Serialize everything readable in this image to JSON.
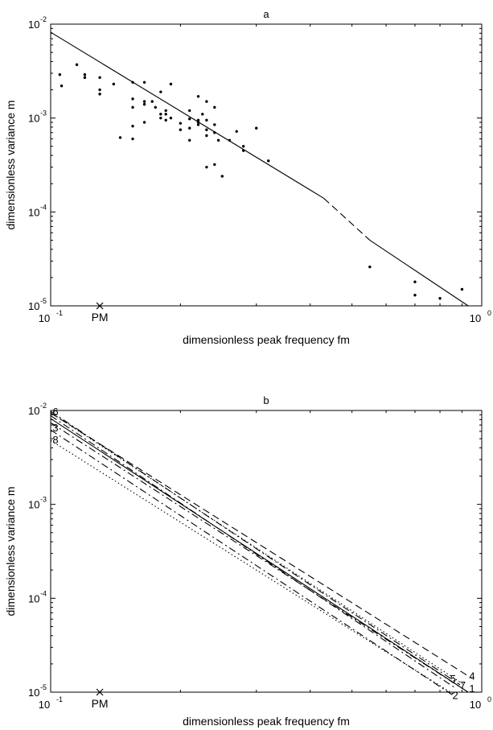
{
  "chart_data": [
    {
      "type": "scatter",
      "title": "a",
      "xlabel": "dimensionless peak frequency fm",
      "ylabel": "dimensionless variance m",
      "xscale": "log",
      "yscale": "log",
      "xlim": [
        0.1,
        1
      ],
      "ylim": [
        1e-05,
        0.01
      ],
      "grid": false,
      "xticks": [
        {
          "value": 0.1,
          "base": "10",
          "exp": "-1"
        },
        {
          "value": 1,
          "base": "10",
          "exp": "0"
        }
      ],
      "yticks": [
        {
          "value": 1e-05,
          "base": "10",
          "exp": "-5"
        },
        {
          "value": 0.0001,
          "base": "10",
          "exp": "-4"
        },
        {
          "value": 0.001,
          "base": "10",
          "exp": "-3"
        },
        {
          "value": 0.01,
          "base": "10",
          "exp": "-2"
        }
      ],
      "marker": {
        "label": "PM",
        "x": 0.13,
        "y": 1e-05
      },
      "fit_line": {
        "x": [
          0.1,
          0.43,
          0.55,
          0.93
        ],
        "y": [
          0.0082,
          0.00014,
          5e-05,
          1e-05
        ],
        "styles": [
          "solid",
          "dashed",
          "solid"
        ]
      },
      "points": [
        [
          0.105,
          0.0029
        ],
        [
          0.106,
          0.0022
        ],
        [
          0.115,
          0.0037
        ],
        [
          0.12,
          0.0029
        ],
        [
          0.12,
          0.0027
        ],
        [
          0.13,
          0.0027
        ],
        [
          0.13,
          0.002
        ],
        [
          0.13,
          0.0018
        ],
        [
          0.14,
          0.0023
        ],
        [
          0.145,
          0.00062
        ],
        [
          0.155,
          0.0024
        ],
        [
          0.155,
          0.0016
        ],
        [
          0.155,
          0.0013
        ],
        [
          0.155,
          0.00082
        ],
        [
          0.155,
          0.0006
        ],
        [
          0.165,
          0.0024
        ],
        [
          0.165,
          0.0015
        ],
        [
          0.165,
          0.0014
        ],
        [
          0.165,
          0.0009
        ],
        [
          0.172,
          0.0015
        ],
        [
          0.175,
          0.0013
        ],
        [
          0.18,
          0.0019
        ],
        [
          0.18,
          0.0011
        ],
        [
          0.18,
          0.001
        ],
        [
          0.185,
          0.0012
        ],
        [
          0.185,
          0.0011
        ],
        [
          0.185,
          0.00095
        ],
        [
          0.19,
          0.0023
        ],
        [
          0.19,
          0.001
        ],
        [
          0.2,
          0.00088
        ],
        [
          0.2,
          0.00075
        ],
        [
          0.21,
          0.0012
        ],
        [
          0.21,
          0.00098
        ],
        [
          0.21,
          0.00078
        ],
        [
          0.21,
          0.00058
        ],
        [
          0.22,
          0.0017
        ],
        [
          0.22,
          0.00095
        ],
        [
          0.22,
          0.0009
        ],
        [
          0.22,
          0.00085
        ],
        [
          0.225,
          0.0011
        ],
        [
          0.23,
          0.0015
        ],
        [
          0.23,
          0.00095
        ],
        [
          0.23,
          0.00075
        ],
        [
          0.23,
          0.00065
        ],
        [
          0.23,
          0.0003
        ],
        [
          0.24,
          0.0013
        ],
        [
          0.24,
          0.00085
        ],
        [
          0.24,
          0.0007
        ],
        [
          0.24,
          0.00032
        ],
        [
          0.245,
          0.00058
        ],
        [
          0.25,
          0.00024
        ],
        [
          0.26,
          0.00058
        ],
        [
          0.27,
          0.00072
        ],
        [
          0.28,
          0.0005
        ],
        [
          0.28,
          0.00045
        ],
        [
          0.3,
          0.00078
        ],
        [
          0.32,
          0.00035
        ],
        [
          0.55,
          2.6e-05
        ],
        [
          0.7,
          1.8e-05
        ],
        [
          0.7,
          1.3e-05
        ],
        [
          0.8,
          1.2e-05
        ],
        [
          0.9,
          1.5e-05
        ]
      ]
    },
    {
      "type": "line",
      "title": "b",
      "xlabel": "dimensionless peak frequency fm",
      "ylabel": "dimensionless variance m",
      "xscale": "log",
      "yscale": "log",
      "xlim": [
        0.1,
        1
      ],
      "ylim": [
        1e-05,
        0.01
      ],
      "grid": false,
      "xticks": [
        {
          "value": 0.1,
          "base": "10",
          "exp": "-1"
        },
        {
          "value": 1,
          "base": "10",
          "exp": "0"
        }
      ],
      "yticks": [
        {
          "value": 1e-05,
          "base": "10",
          "exp": "-5"
        },
        {
          "value": 0.0001,
          "base": "10",
          "exp": "-4"
        },
        {
          "value": 0.001,
          "base": "10",
          "exp": "-3"
        },
        {
          "value": 0.01,
          "base": "10",
          "exp": "-2"
        }
      ],
      "marker": {
        "label": "PM",
        "x": 0.13,
        "y": 1e-05
      },
      "series": [
        {
          "name": "1",
          "style": "solid",
          "x": [
            0.1,
            0.93
          ],
          "y": [
            0.0082,
            1e-05
          ]
        },
        {
          "name": "2",
          "style": "dashdot",
          "x": [
            0.1,
            0.86
          ],
          "y": [
            0.0062,
            9.2e-06
          ]
        },
        {
          "name": "3",
          "style": "dashdot",
          "x": [
            0.1,
            0.9
          ],
          "y": [
            0.0074,
            1.1e-05
          ]
        },
        {
          "name": "4",
          "style": "dashed",
          "x": [
            0.1,
            0.95
          ],
          "y": [
            0.0094,
            1.4e-05
          ]
        },
        {
          "name": "5",
          "style": "dashdot",
          "x": [
            0.1,
            0.87
          ],
          "y": [
            0.0088,
            1.1e-05
          ]
        },
        {
          "name": "6",
          "style": "dashdot",
          "x": [
            0.1,
            0.89
          ],
          "y": [
            0.0098,
            1.2e-05
          ]
        },
        {
          "name": "7",
          "style": "dotted",
          "x": [
            0.1,
            0.91
          ],
          "y": [
            0.0095,
            1.2e-05
          ]
        },
        {
          "name": "8",
          "style": "dotted",
          "x": [
            0.1,
            0.86
          ],
          "y": [
            0.0048,
            9.5e-06
          ]
        }
      ],
      "series_labels": [
        {
          "text": "6",
          "x": 0.101,
          "y": 0.0098
        },
        {
          "text": "3",
          "x": 0.101,
          "y": 0.0066
        },
        {
          "text": "8",
          "x": 0.101,
          "y": 0.0049
        },
        {
          "text": "5",
          "x": 0.845,
          "y": 1.4e-05
        },
        {
          "text": "4",
          "x": 0.935,
          "y": 1.5e-05
        },
        {
          "text": "7",
          "x": 0.89,
          "y": 1.2e-05
        },
        {
          "text": "1",
          "x": 0.935,
          "y": 1.1e-05
        },
        {
          "text": "2",
          "x": 0.855,
          "y": 9.3e-06
        }
      ]
    }
  ]
}
